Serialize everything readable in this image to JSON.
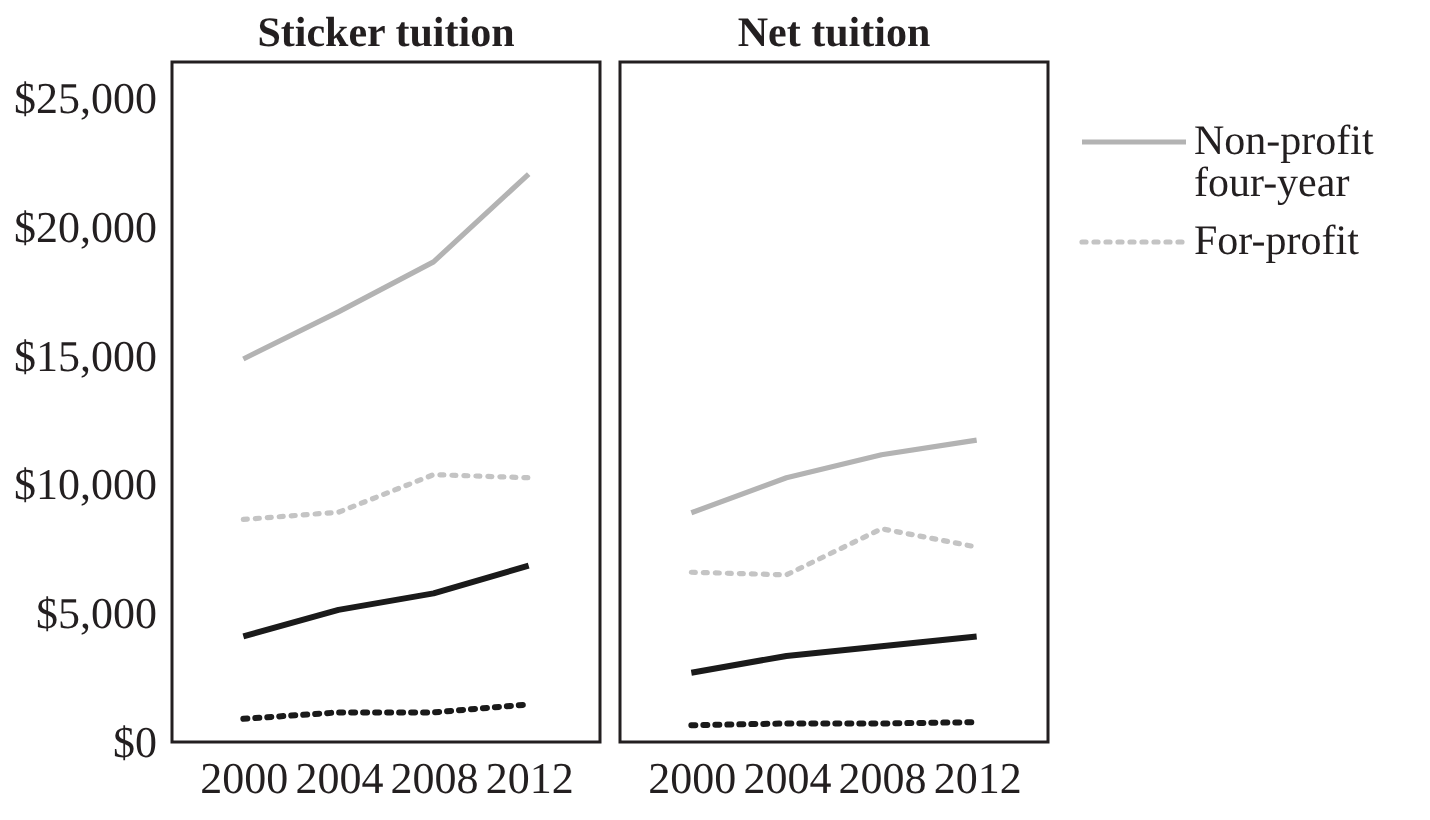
{
  "chart_data": [
    {
      "type": "line",
      "title": "Sticker tuition",
      "x": [
        2000,
        2004,
        2008,
        2012
      ],
      "xlim": [
        1997,
        2015
      ],
      "xticks": [
        2000,
        2004,
        2008,
        2012
      ],
      "ylim": [
        0,
        26400
      ],
      "yticks": [
        {
          "value": 0,
          "label": "$0"
        },
        {
          "value": 5000,
          "label": "$5,000"
        },
        {
          "value": 10000,
          "label": "$10,000"
        },
        {
          "value": 15000,
          "label": "$15,000"
        },
        {
          "value": 20000,
          "label": "$20,000"
        },
        {
          "value": 25000,
          "label": "$25,000"
        }
      ],
      "series": [
        {
          "color": "#b3b3b3",
          "line_style": "solid",
          "values": [
            14870,
            16700,
            18640,
            22050
          ]
        },
        {
          "color": "#c4c4c4",
          "line_style": "dotted",
          "values": [
            8640,
            8920,
            10380,
            10260
          ]
        },
        {
          "color": "#1a1a1a",
          "line_style": "solid",
          "values": [
            4100,
            5130,
            5770,
            6850
          ]
        },
        {
          "color": "#1a1a1a",
          "line_style": "dotted",
          "values": [
            900,
            1150,
            1150,
            1460
          ]
        }
      ]
    },
    {
      "type": "line",
      "title": "Net tuition",
      "x": [
        2000,
        2004,
        2008,
        2012
      ],
      "xlim": [
        1997,
        2015
      ],
      "xticks": [
        2000,
        2004,
        2008,
        2012
      ],
      "ylim": [
        0,
        26400
      ],
      "tick_labels": "x",
      "legend": "top right",
      "series": [
        {
          "name": "Non-profit four-year",
          "color": "#b3b3b3",
          "line_style": "solid",
          "values": [
            8900,
            10260,
            11150,
            11720
          ]
        },
        {
          "name": "For-profit",
          "color": "#c4c4c4",
          "line_style": "dotted",
          "values": [
            6590,
            6490,
            8280,
            7570
          ]
        },
        {
          "color": "#1a1a1a",
          "line_style": "solid",
          "values": [
            2690,
            3340,
            3720,
            4100
          ]
        },
        {
          "color": "#1a1a1a",
          "line_style": "dotted",
          "values": [
            650,
            720,
            720,
            770
          ]
        }
      ]
    }
  ]
}
